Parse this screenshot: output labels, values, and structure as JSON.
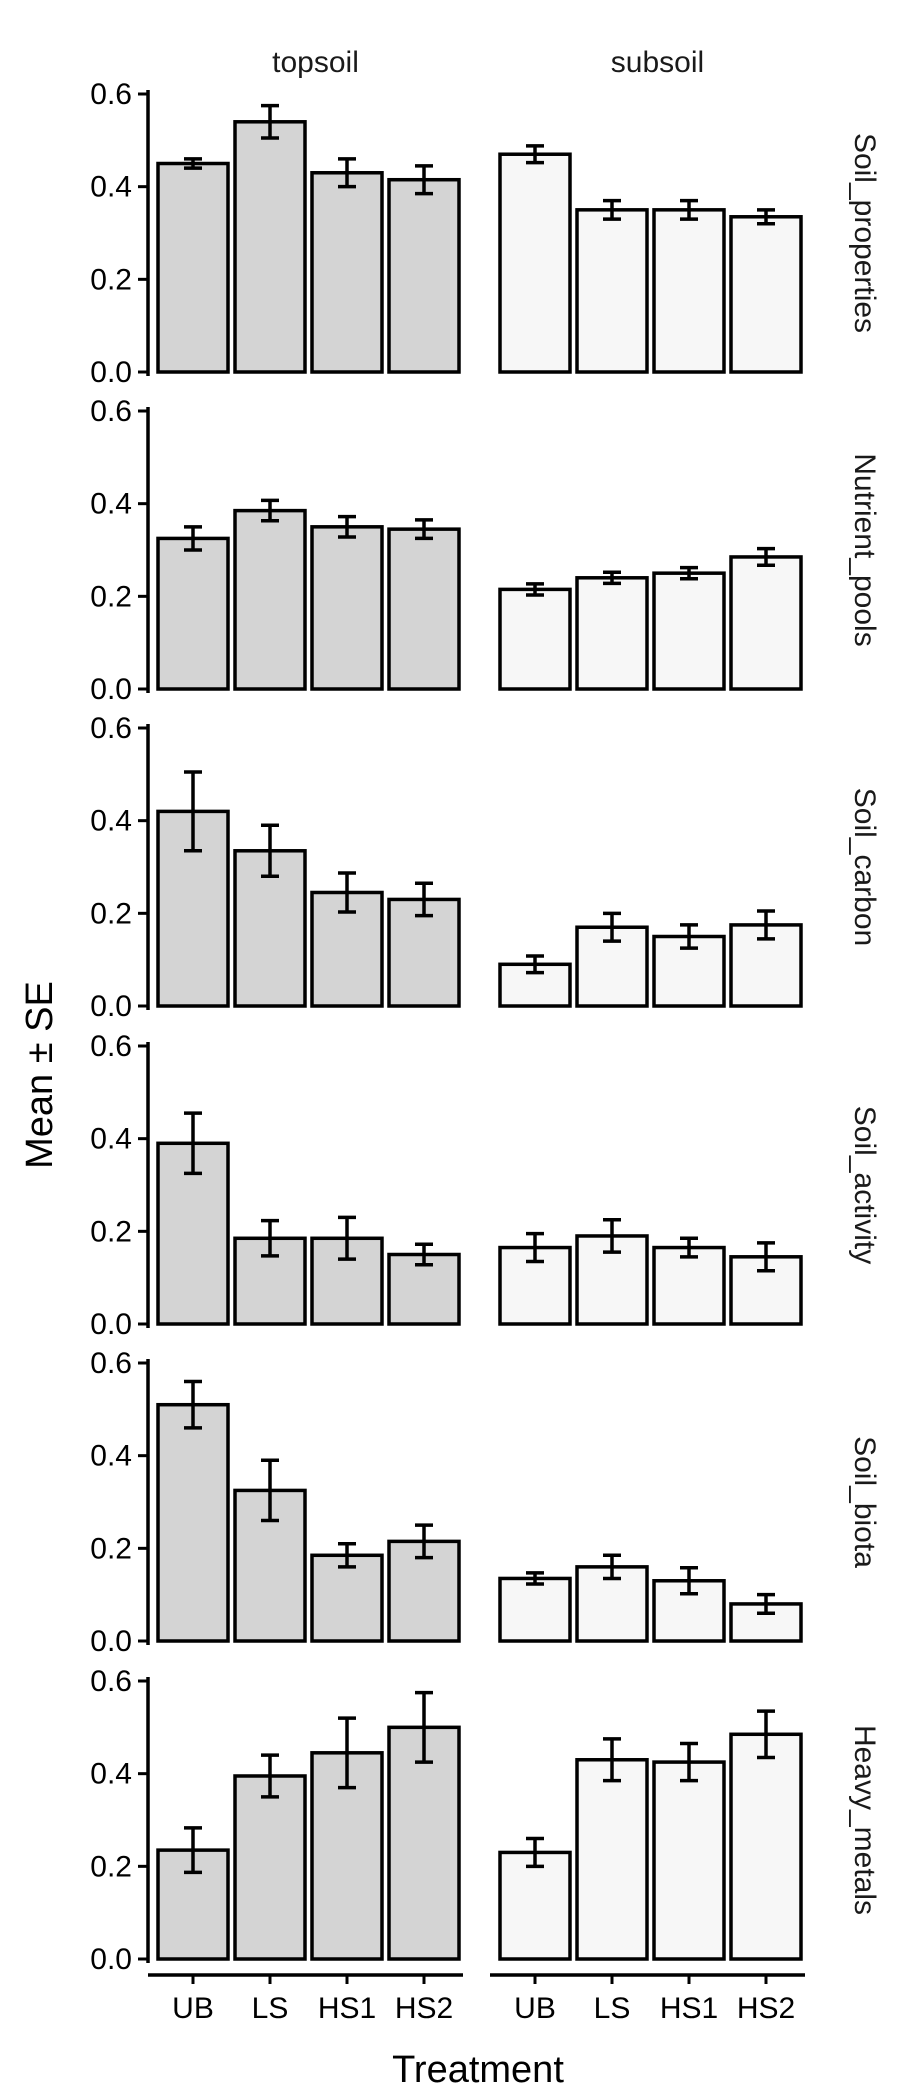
{
  "chart_data": {
    "type": "bar",
    "xlabel": "Treatment",
    "ylabel": "Mean ± SE",
    "categories": [
      "UB",
      "LS",
      "HS1",
      "HS2"
    ],
    "ylim": [
      0,
      0.6
    ],
    "yticks": [
      0.0,
      0.2,
      0.4,
      0.6
    ],
    "ytick_labels": [
      "0.0",
      "0.2",
      "0.4",
      "0.6"
    ],
    "grid": false,
    "legend": "none",
    "columns": [
      "topsoil",
      "subsoil"
    ],
    "column_fill": {
      "topsoil": "#d4d4d4",
      "subsoil": "#f7f7f7"
    },
    "rows": [
      {
        "name": "Soil_properties",
        "topsoil": {
          "mean": [
            0.45,
            0.54,
            0.43,
            0.415
          ],
          "se": [
            0.01,
            0.035,
            0.03,
            0.03
          ]
        },
        "subsoil": {
          "mean": [
            0.47,
            0.35,
            0.35,
            0.335
          ],
          "se": [
            0.018,
            0.02,
            0.02,
            0.015
          ]
        }
      },
      {
        "name": "Nutrient_pools",
        "topsoil": {
          "mean": [
            0.325,
            0.385,
            0.35,
            0.345
          ],
          "se": [
            0.025,
            0.022,
            0.022,
            0.02
          ]
        },
        "subsoil": {
          "mean": [
            0.215,
            0.24,
            0.25,
            0.285
          ],
          "se": [
            0.012,
            0.012,
            0.012,
            0.018
          ]
        }
      },
      {
        "name": "Soil_carbon",
        "topsoil": {
          "mean": [
            0.42,
            0.335,
            0.245,
            0.23
          ],
          "se": [
            0.085,
            0.055,
            0.042,
            0.035
          ]
        },
        "subsoil": {
          "mean": [
            0.09,
            0.17,
            0.15,
            0.175
          ],
          "se": [
            0.018,
            0.03,
            0.025,
            0.03
          ]
        }
      },
      {
        "name": "Soil_activity",
        "topsoil": {
          "mean": [
            0.39,
            0.185,
            0.185,
            0.15
          ],
          "se": [
            0.065,
            0.038,
            0.045,
            0.022
          ]
        },
        "subsoil": {
          "mean": [
            0.165,
            0.19,
            0.165,
            0.145
          ],
          "se": [
            0.03,
            0.035,
            0.02,
            0.03
          ]
        }
      },
      {
        "name": "Soil_biota",
        "topsoil": {
          "mean": [
            0.51,
            0.325,
            0.185,
            0.215
          ],
          "se": [
            0.05,
            0.065,
            0.025,
            0.035
          ]
        },
        "subsoil": {
          "mean": [
            0.135,
            0.16,
            0.13,
            0.08
          ],
          "se": [
            0.012,
            0.025,
            0.028,
            0.02
          ]
        }
      },
      {
        "name": "Heavy_metals",
        "topsoil": {
          "mean": [
            0.235,
            0.395,
            0.445,
            0.5
          ],
          "se": [
            0.048,
            0.045,
            0.075,
            0.075
          ]
        },
        "subsoil": {
          "mean": [
            0.23,
            0.43,
            0.425,
            0.485
          ],
          "se": [
            0.03,
            0.045,
            0.04,
            0.05
          ]
        }
      }
    ]
  }
}
